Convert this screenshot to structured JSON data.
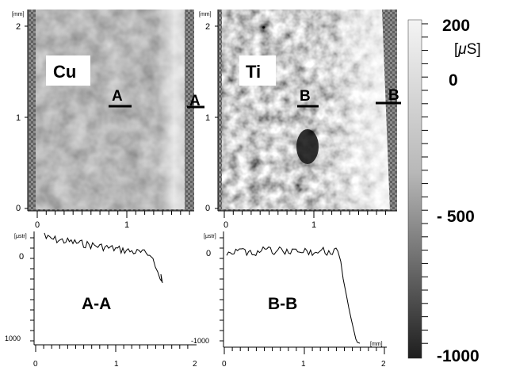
{
  "maps": {
    "unit": "[mm]",
    "cu": {
      "label": "Cu",
      "section_label": "A",
      "y_ticks": [
        "2",
        "1",
        "0"
      ],
      "x_ticks": [
        "0",
        "1"
      ]
    },
    "ti": {
      "label": "Ti",
      "section_label": "B",
      "y_ticks": [
        "2",
        "1",
        "0"
      ],
      "x_ticks": [
        "0",
        "1"
      ]
    }
  },
  "profiles": {
    "unit": "[μstr]",
    "x_unit": "[mm]",
    "a": {
      "label": "A-A",
      "y_ticks": [
        "0",
        "1000"
      ],
      "x_ticks": [
        "0",
        "1",
        "2"
      ]
    },
    "b": {
      "label": "B-B",
      "y_ticks": [
        "0",
        "-1000"
      ],
      "x_ticks": [
        "0",
        "1",
        "2"
      ]
    }
  },
  "colorbar": {
    "unit_open": "[",
    "unit_mu": "μ",
    "unit_rest": "S]",
    "tick_labels": [
      "200",
      "0",
      "- 500",
      "-1000"
    ],
    "color_top": "#f4f4f4",
    "color_bottom": "#1e1e1e"
  }
}
